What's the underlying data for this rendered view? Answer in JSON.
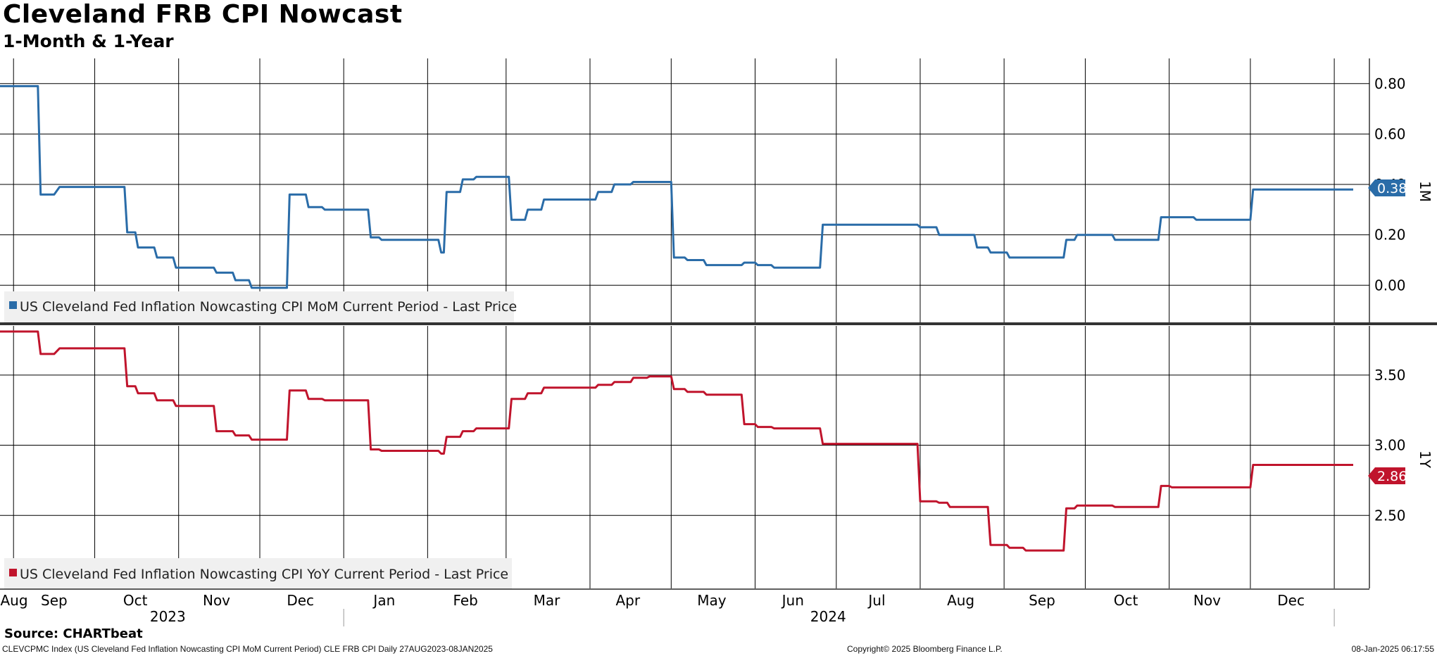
{
  "title": "Cleveland FRB CPI Nowcast",
  "subtitle": "1-Month & 1-Year",
  "source": "Source: CHARTbeat",
  "footer": {
    "left": "CLEVCPMC Index (US Cleveland Fed Inflation Nowcasting CPI MoM Current Period) CLE FRB CPI  Daily 27AUG2023-08JAN2025",
    "center": "Copyright© 2025 Bloomberg Finance L.P.",
    "right": "08-Jan-2025 06:17:55"
  },
  "colors": {
    "mom": "#2a6ca8",
    "yoy": "#c0142c",
    "grid": "#000000"
  },
  "chart_data": [
    {
      "type": "line",
      "panel_label": "1M",
      "legend": "US Cleveland Fed Inflation Nowcasting CPI MoM Current Period - Last Price",
      "last_value_label": "0.38",
      "ylim": [
        -0.15,
        0.9
      ],
      "yticks": [
        "0.80",
        "0.60",
        "0.40",
        "0.20",
        "0.00"
      ],
      "grid": true,
      "x_axis": {
        "months": [
          "Aug",
          "Sep",
          "Oct",
          "Nov",
          "Dec",
          "Jan",
          "Feb",
          "Mar",
          "Apr",
          "May",
          "Jun",
          "Jul",
          "Aug",
          "Sep",
          "Oct",
          "Nov",
          "Dec"
        ],
        "years": [
          "2023",
          "2024"
        ],
        "range": [
          "2023-08-27",
          "2025-01-08"
        ]
      },
      "series": [
        {
          "name": "US Cleveland Fed Inflation Nowcasting CPI MoM Current Period - Last Price",
          "points": [
            [
              "2023-08-27",
              0.79
            ],
            [
              "2023-09-10",
              0.79
            ],
            [
              "2023-09-11",
              0.36
            ],
            [
              "2023-09-16",
              0.36
            ],
            [
              "2023-09-18",
              0.39
            ],
            [
              "2023-10-12",
              0.39
            ],
            [
              "2023-10-13",
              0.21
            ],
            [
              "2023-10-16",
              0.21
            ],
            [
              "2023-10-17",
              0.15
            ],
            [
              "2023-10-23",
              0.15
            ],
            [
              "2023-10-24",
              0.11
            ],
            [
              "2023-10-30",
              0.11
            ],
            [
              "2023-10-31",
              0.07
            ],
            [
              "2023-11-14",
              0.07
            ],
            [
              "2023-11-15",
              0.05
            ],
            [
              "2023-11-21",
              0.05
            ],
            [
              "2023-11-22",
              0.02
            ],
            [
              "2023-11-27",
              0.02
            ],
            [
              "2023-11-28",
              -0.01
            ],
            [
              "2023-12-11",
              -0.01
            ],
            [
              "2023-12-12",
              0.36
            ],
            [
              "2023-12-18",
              0.36
            ],
            [
              "2023-12-19",
              0.31
            ],
            [
              "2023-12-24",
              0.31
            ],
            [
              "2023-12-25",
              0.3
            ],
            [
              "2024-01-10",
              0.3
            ],
            [
              "2024-01-11",
              0.19
            ],
            [
              "2024-01-14",
              0.19
            ],
            [
              "2024-01-15",
              0.18
            ],
            [
              "2024-02-05",
              0.18
            ],
            [
              "2024-02-06",
              0.13
            ],
            [
              "2024-02-07",
              0.13
            ],
            [
              "2024-02-08",
              0.37
            ],
            [
              "2024-02-13",
              0.37
            ],
            [
              "2024-02-14",
              0.42
            ],
            [
              "2024-02-18",
              0.42
            ],
            [
              "2024-02-19",
              0.43
            ],
            [
              "2024-03-02",
              0.43
            ],
            [
              "2024-03-03",
              0.26
            ],
            [
              "2024-03-08",
              0.26
            ],
            [
              "2024-03-09",
              0.3
            ],
            [
              "2024-03-14",
              0.3
            ],
            [
              "2024-03-15",
              0.34
            ],
            [
              "2024-04-03",
              0.34
            ],
            [
              "2024-04-04",
              0.37
            ],
            [
              "2024-04-09",
              0.37
            ],
            [
              "2024-04-10",
              0.4
            ],
            [
              "2024-04-16",
              0.4
            ],
            [
              "2024-04-17",
              0.41
            ],
            [
              "2024-05-01",
              0.41
            ],
            [
              "2024-05-02",
              0.11
            ],
            [
              "2024-05-06",
              0.11
            ],
            [
              "2024-05-07",
              0.1
            ],
            [
              "2024-05-13",
              0.1
            ],
            [
              "2024-05-14",
              0.08
            ],
            [
              "2024-05-27",
              0.08
            ],
            [
              "2024-05-28",
              0.09
            ],
            [
              "2024-06-01",
              0.09
            ],
            [
              "2024-06-02",
              0.08
            ],
            [
              "2024-06-07",
              0.08
            ],
            [
              "2024-06-08",
              0.07
            ],
            [
              "2024-06-25",
              0.07
            ],
            [
              "2024-06-26",
              0.24
            ],
            [
              "2024-07-31",
              0.24
            ],
            [
              "2024-08-01",
              0.23
            ],
            [
              "2024-08-07",
              0.23
            ],
            [
              "2024-08-08",
              0.2
            ],
            [
              "2024-08-21",
              0.2
            ],
            [
              "2024-08-22",
              0.15
            ],
            [
              "2024-08-26",
              0.15
            ],
            [
              "2024-08-27",
              0.13
            ],
            [
              "2024-09-02",
              0.13
            ],
            [
              "2024-09-03",
              0.11
            ],
            [
              "2024-09-23",
              0.11
            ],
            [
              "2024-09-24",
              0.18
            ],
            [
              "2024-09-27",
              0.18
            ],
            [
              "2024-09-28",
              0.2
            ],
            [
              "2024-10-11",
              0.2
            ],
            [
              "2024-10-12",
              0.18
            ],
            [
              "2024-10-28",
              0.18
            ],
            [
              "2024-10-29",
              0.27
            ],
            [
              "2024-11-10",
              0.27
            ],
            [
              "2024-11-11",
              0.26
            ],
            [
              "2024-12-01",
              0.26
            ],
            [
              "2024-12-02",
              0.38
            ],
            [
              "2025-01-08",
              0.38
            ]
          ]
        }
      ]
    },
    {
      "type": "line",
      "panel_label": "1Y",
      "legend": "US Cleveland Fed Inflation Nowcasting CPI YoY Current Period - Last Price",
      "last_value_label": "2.86",
      "ylim": [
        1.98,
        3.85
      ],
      "yticks": [
        "3.50",
        "3.00",
        "2.50"
      ],
      "grid": true,
      "series": [
        {
          "name": "US Cleveland Fed Inflation Nowcasting CPI YoY Current Period - Last Price",
          "points": [
            [
              "2023-08-27",
              3.81
            ],
            [
              "2023-09-10",
              3.81
            ],
            [
              "2023-09-11",
              3.65
            ],
            [
              "2023-09-16",
              3.65
            ],
            [
              "2023-09-18",
              3.69
            ],
            [
              "2023-10-12",
              3.69
            ],
            [
              "2023-10-13",
              3.42
            ],
            [
              "2023-10-16",
              3.42
            ],
            [
              "2023-10-17",
              3.37
            ],
            [
              "2023-10-23",
              3.37
            ],
            [
              "2023-10-24",
              3.32
            ],
            [
              "2023-10-30",
              3.32
            ],
            [
              "2023-10-31",
              3.28
            ],
            [
              "2023-11-14",
              3.28
            ],
            [
              "2023-11-15",
              3.1
            ],
            [
              "2023-11-21",
              3.1
            ],
            [
              "2023-11-22",
              3.07
            ],
            [
              "2023-11-27",
              3.07
            ],
            [
              "2023-11-28",
              3.04
            ],
            [
              "2023-12-11",
              3.04
            ],
            [
              "2023-12-12",
              3.39
            ],
            [
              "2023-12-18",
              3.39
            ],
            [
              "2023-12-19",
              3.33
            ],
            [
              "2023-12-24",
              3.33
            ],
            [
              "2023-12-25",
              3.32
            ],
            [
              "2024-01-10",
              3.32
            ],
            [
              "2024-01-11",
              2.97
            ],
            [
              "2024-01-14",
              2.97
            ],
            [
              "2024-01-15",
              2.96
            ],
            [
              "2024-02-05",
              2.96
            ],
            [
              "2024-02-06",
              2.94
            ],
            [
              "2024-02-07",
              2.94
            ],
            [
              "2024-02-08",
              3.06
            ],
            [
              "2024-02-13",
              3.06
            ],
            [
              "2024-02-14",
              3.1
            ],
            [
              "2024-02-18",
              3.1
            ],
            [
              "2024-02-19",
              3.12
            ],
            [
              "2024-03-02",
              3.12
            ],
            [
              "2024-03-03",
              3.33
            ],
            [
              "2024-03-08",
              3.33
            ],
            [
              "2024-03-09",
              3.37
            ],
            [
              "2024-03-14",
              3.37
            ],
            [
              "2024-03-15",
              3.41
            ],
            [
              "2024-04-03",
              3.41
            ],
            [
              "2024-04-04",
              3.43
            ],
            [
              "2024-04-09",
              3.43
            ],
            [
              "2024-04-10",
              3.45
            ],
            [
              "2024-04-16",
              3.45
            ],
            [
              "2024-04-17",
              3.48
            ],
            [
              "2024-04-22",
              3.48
            ],
            [
              "2024-04-23",
              3.49
            ],
            [
              "2024-05-01",
              3.49
            ],
            [
              "2024-05-02",
              3.4
            ],
            [
              "2024-05-06",
              3.4
            ],
            [
              "2024-05-07",
              3.38
            ],
            [
              "2024-05-13",
              3.38
            ],
            [
              "2024-05-14",
              3.36
            ],
            [
              "2024-05-27",
              3.36
            ],
            [
              "2024-05-28",
              3.15
            ],
            [
              "2024-06-01",
              3.15
            ],
            [
              "2024-06-02",
              3.13
            ],
            [
              "2024-06-07",
              3.13
            ],
            [
              "2024-06-08",
              3.12
            ],
            [
              "2024-06-25",
              3.12
            ],
            [
              "2024-06-26",
              3.01
            ],
            [
              "2024-07-31",
              3.01
            ],
            [
              "2024-08-01",
              2.6
            ],
            [
              "2024-08-07",
              2.6
            ],
            [
              "2024-08-08",
              2.59
            ],
            [
              "2024-08-11",
              2.59
            ],
            [
              "2024-08-12",
              2.56
            ],
            [
              "2024-08-26",
              2.56
            ],
            [
              "2024-08-27",
              2.29
            ],
            [
              "2024-09-02",
              2.29
            ],
            [
              "2024-09-03",
              2.27
            ],
            [
              "2024-09-08",
              2.27
            ],
            [
              "2024-09-09",
              2.25
            ],
            [
              "2024-09-23",
              2.25
            ],
            [
              "2024-09-24",
              2.55
            ],
            [
              "2024-09-27",
              2.55
            ],
            [
              "2024-09-28",
              2.57
            ],
            [
              "2024-10-11",
              2.57
            ],
            [
              "2024-10-12",
              2.56
            ],
            [
              "2024-10-28",
              2.56
            ],
            [
              "2024-10-29",
              2.71
            ],
            [
              "2024-11-01",
              2.71
            ],
            [
              "2024-11-02",
              2.7
            ],
            [
              "2024-12-01",
              2.7
            ],
            [
              "2024-12-02",
              2.86
            ],
            [
              "2025-01-08",
              2.86
            ]
          ]
        }
      ]
    }
  ]
}
